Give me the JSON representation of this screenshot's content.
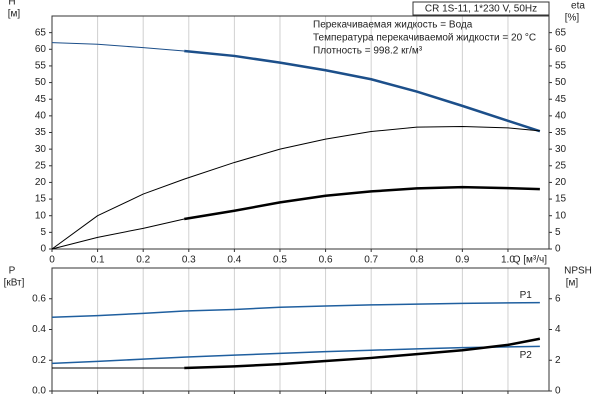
{
  "chart_data": [
    {
      "type": "line",
      "title": "CR 1S-11, 1*230 V, 50Hz",
      "notes": [
        "Перекачиваемая жидкость = Вода",
        "Температура перекачиваемой жидкости = 20 °C",
        "Плотность = 998.2 кг/м³"
      ],
      "xlabel": "Q [м³/ч]",
      "ylabel": "H",
      "yunit": "[м]",
      "y2label": "eta",
      "y2unit": "[%]",
      "x": [
        0,
        0.1,
        0.2,
        0.29,
        0.4,
        0.5,
        0.6,
        0.7,
        0.8,
        0.9,
        1.0,
        1.07
      ],
      "xlim": [
        0,
        1.09
      ],
      "xticks": [
        0,
        0.1,
        0.2,
        0.3,
        0.4,
        0.5,
        0.6,
        0.7,
        0.8,
        0.9,
        {
          "value": 1,
          "label": "1.0"
        }
      ],
      "xtick_labels": true,
      "ylim": [
        0,
        70
      ],
      "yticks": [
        0,
        5,
        10,
        15,
        20,
        25,
        30,
        35,
        40,
        45,
        50,
        55,
        60,
        65
      ],
      "y2lim": [
        0,
        70
      ],
      "y2ticks": [
        0,
        5,
        10,
        15,
        20,
        25,
        30,
        35,
        40,
        45,
        50,
        55,
        60,
        65
      ],
      "grid": "x",
      "series": [
        {
          "color": "#1c4f8a",
          "width": 1,
          "values": [
            62,
            61.5,
            60.5,
            59.5,
            null,
            null,
            null,
            null,
            null,
            null,
            null,
            null
          ]
        },
        {
          "color": "#1c4f8a",
          "width": 2.5,
          "values": [
            null,
            null,
            null,
            59.5,
            58,
            56,
            53.7,
            51,
            47.3,
            43,
            38.5,
            35.4
          ]
        },
        {
          "color": "#000000",
          "width": 1,
          "axis": "y2",
          "values": [
            0,
            10,
            16.5,
            21,
            26,
            30,
            33,
            35.3,
            36.6,
            36.8,
            36.4,
            35.5
          ]
        },
        {
          "color": "#000000",
          "width": 1,
          "axis": "y2",
          "values": [
            0,
            3.5,
            6.2,
            9,
            null,
            null,
            null,
            null,
            null,
            null,
            null,
            null
          ]
        },
        {
          "color": "#000000",
          "width": 2.5,
          "axis": "y2",
          "values": [
            null,
            null,
            null,
            9,
            11.5,
            14,
            16,
            17.3,
            18.2,
            18.6,
            18.3,
            18
          ]
        }
      ]
    },
    {
      "type": "line",
      "ylabel": "P",
      "yunit": "[кВт]",
      "y2label": "NPSH",
      "y2unit": "[м]",
      "x": [
        0,
        0.1,
        0.2,
        0.29,
        0.4,
        0.5,
        0.6,
        0.7,
        0.8,
        0.9,
        1.0,
        1.07
      ],
      "xlim": [
        0,
        1.09
      ],
      "xticks": [
        0,
        0.1,
        0.2,
        0.3,
        0.4,
        0.5,
        0.6,
        0.7,
        0.8,
        0.9,
        1
      ],
      "xtick_labels": false,
      "ylim": [
        0,
        0.8
      ],
      "yticks": [
        {
          "value": 0,
          "label": "0.0"
        },
        0.2,
        0.4,
        0.6
      ],
      "y2lim": [
        0,
        8
      ],
      "y2ticks": [
        0,
        2,
        4,
        6
      ],
      "grid": "x",
      "series": [
        {
          "name": "P1",
          "label_pos": "above",
          "color": "#1f5f9f",
          "width": 1.5,
          "values": [
            0.48,
            0.49,
            0.505,
            0.52,
            0.53,
            0.545,
            0.553,
            0.56,
            0.565,
            0.57,
            0.573,
            0.575
          ]
        },
        {
          "name": "P2",
          "label_pos": "below",
          "color": "#1f5f9f",
          "width": 1.5,
          "values": [
            0.18,
            0.193,
            0.207,
            0.22,
            0.233,
            0.245,
            0.256,
            0.265,
            0.274,
            0.282,
            0.287,
            0.29
          ]
        },
        {
          "color": "#000000",
          "width": 1,
          "axis": "y2",
          "values": [
            1.5,
            1.5,
            1.5,
            1.5,
            null,
            null,
            null,
            null,
            null,
            null,
            null,
            null
          ]
        },
        {
          "color": "#000000",
          "width": 2.5,
          "axis": "y2",
          "values": [
            null,
            null,
            null,
            1.5,
            1.6,
            1.75,
            1.95,
            2.15,
            2.4,
            2.65,
            3.0,
            3.4
          ]
        }
      ]
    }
  ]
}
